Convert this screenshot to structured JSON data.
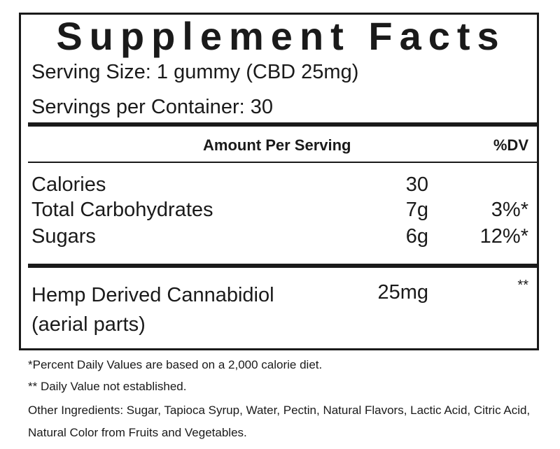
{
  "label": {
    "title": "Supplement Facts",
    "serving_size": "Serving Size: 1 gummy (CBD 25mg)",
    "servings_per_container": "Servings per Container: 30",
    "header": {
      "amount": "Amount Per Serving",
      "dv": "%DV"
    },
    "rows": [
      {
        "name": "Calories",
        "amount": "30"
      },
      {
        "name": "Total Carbohydrates",
        "amount": "7g",
        "dv": "3%*"
      },
      {
        "name": "Sugars",
        "amount": "6g",
        "dv": "12%*"
      }
    ],
    "other": {
      "name_lines": [
        "Hemp Derived Cannabidiol",
        "(aerial parts)"
      ],
      "amount": "25mg",
      "dv": "**"
    }
  },
  "footnotes": [
    "*Percent Daily Values are based on a 2,000 calorie diet.",
    "** Daily Value not established.",
    "Other Ingredients: Sugar, Tapioca Syrup, Water, Pectin, Natural Flavors, Lactic Acid, Citric Acid, Natural Color from Fruits and Vegetables."
  ]
}
